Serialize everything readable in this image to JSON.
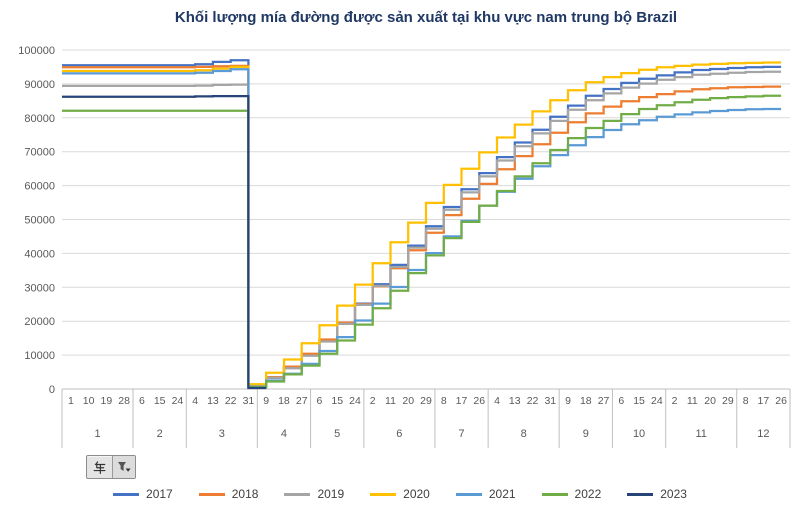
{
  "chart_data": {
    "type": "line",
    "title": "Khối lượng mía đường được sản xuất tại khu vực nam trung bộ Brazil",
    "xlabel": "",
    "ylabel": "",
    "ylim": [
      0,
      100000
    ],
    "y_step": 10000,
    "grid": true,
    "legend_position": "bottom",
    "x_day_labels": [
      "1",
      "10",
      "19",
      "28",
      "6",
      "15",
      "24",
      "4",
      "13",
      "22",
      "31",
      "9",
      "18",
      "27",
      "6",
      "15",
      "24",
      "2",
      "11",
      "20",
      "29",
      "8",
      "17",
      "26",
      "4",
      "13",
      "22",
      "31",
      "9",
      "18",
      "27",
      "6",
      "15",
      "24",
      "2",
      "11",
      "20",
      "29",
      "8",
      "17",
      "26"
    ],
    "x_month_groups": [
      {
        "label": "1",
        "count": 4
      },
      {
        "label": "2",
        "count": 3
      },
      {
        "label": "3",
        "count": 4
      },
      {
        "label": "4",
        "count": 3
      },
      {
        "label": "5",
        "count": 3
      },
      {
        "label": "6",
        "count": 4
      },
      {
        "label": "7",
        "count": 3
      },
      {
        "label": "8",
        "count": 4
      },
      {
        "label": "9",
        "count": 3
      },
      {
        "label": "10",
        "count": 3
      },
      {
        "label": "11",
        "count": 4
      },
      {
        "label": "12",
        "count": 3
      }
    ],
    "series": [
      {
        "name": "2017",
        "color": "#4472C4",
        "values": [
          95500,
          95500,
          95500,
          95500,
          95500,
          95500,
          95500,
          95500,
          95800,
          96500,
          97000,
          900,
          3300,
          6200,
          10000,
          14300,
          19500,
          25200,
          30900,
          36600,
          42300,
          48000,
          53700,
          58900,
          63700,
          68400,
          72700,
          76500,
          80300,
          83600,
          86500,
          88500,
          90300,
          91500,
          92500,
          93400,
          94100,
          94400,
          94700,
          94900,
          95000
        ]
      },
      {
        "name": "2018",
        "color": "#ED7D31",
        "values": [
          94900,
          94900,
          94900,
          94900,
          94900,
          94900,
          94900,
          94900,
          95000,
          95200,
          95300,
          1000,
          3500,
          6600,
          10400,
          14600,
          19600,
          25000,
          30300,
          35600,
          40900,
          46100,
          51300,
          56100,
          60500,
          64800,
          68700,
          72200,
          75600,
          78700,
          81300,
          83300,
          84900,
          86100,
          87000,
          87800,
          88400,
          88700,
          89000,
          89100,
          89200
        ]
      },
      {
        "name": "2019",
        "color": "#A5A5A5",
        "values": [
          89400,
          89400,
          89400,
          89400,
          89400,
          89400,
          89400,
          89400,
          89500,
          89700,
          89800,
          900,
          3300,
          6100,
          9800,
          14000,
          19200,
          24800,
          30400,
          36000,
          41700,
          47300,
          52900,
          58000,
          62700,
          67400,
          71600,
          75400,
          79100,
          82400,
          85200,
          87200,
          88900,
          90100,
          91200,
          92000,
          92700,
          93000,
          93300,
          93500,
          93600
        ]
      },
      {
        "name": "2020",
        "color": "#FFC000",
        "values": [
          93800,
          93800,
          93800,
          93800,
          93800,
          93800,
          93800,
          93800,
          94000,
          94500,
          95000,
          1400,
          4800,
          8700,
          13500,
          18800,
          24600,
          30800,
          37100,
          43300,
          49100,
          54900,
          60200,
          65000,
          69800,
          74200,
          78000,
          81900,
          85200,
          88100,
          90500,
          92000,
          93200,
          94200,
          94900,
          95300,
          95700,
          95900,
          96100,
          96200,
          96300
        ]
      },
      {
        "name": "2021",
        "color": "#5B9BD5",
        "values": [
          93100,
          93100,
          93100,
          93100,
          93100,
          93100,
          93100,
          93100,
          93300,
          93800,
          94300,
          700,
          2500,
          4500,
          7400,
          11200,
          15300,
          20200,
          25200,
          30100,
          35100,
          40100,
          45000,
          49600,
          54100,
          58200,
          62000,
          65700,
          69000,
          71900,
          74300,
          76400,
          78100,
          79300,
          80300,
          81000,
          81600,
          82000,
          82300,
          82500,
          82600
        ]
      },
      {
        "name": "2022",
        "color": "#70AD47",
        "values": [
          82100,
          82100,
          82100,
          82100,
          82100,
          82100,
          82100,
          82100,
          82100,
          82100,
          82100,
          500,
          2200,
          4300,
          6900,
          10400,
          14300,
          19000,
          23800,
          29000,
          34200,
          39400,
          44500,
          49300,
          54100,
          58400,
          62700,
          66600,
          70500,
          74000,
          77000,
          79100,
          81100,
          82600,
          83700,
          84600,
          85300,
          85800,
          86100,
          86300,
          86500
        ]
      },
      {
        "name": "2023",
        "color": "#264478",
        "values": [
          86200,
          86200,
          86200,
          86200,
          86200,
          86200,
          86200,
          86200,
          86300,
          86400,
          86400,
          300,
          null,
          null,
          null,
          null,
          null,
          null,
          null,
          null,
          null,
          null,
          null,
          null,
          null,
          null,
          null,
          null,
          null,
          null,
          null,
          null,
          null,
          null,
          null,
          null,
          null,
          null,
          null,
          null,
          null
        ]
      }
    ]
  },
  "filter_button": {
    "label": "年"
  },
  "axis_style": {
    "label_color": "#595959",
    "grid_color": "#D9D9D9",
    "axis_color": "#BFBFBF",
    "title_color": "#1F3864"
  }
}
